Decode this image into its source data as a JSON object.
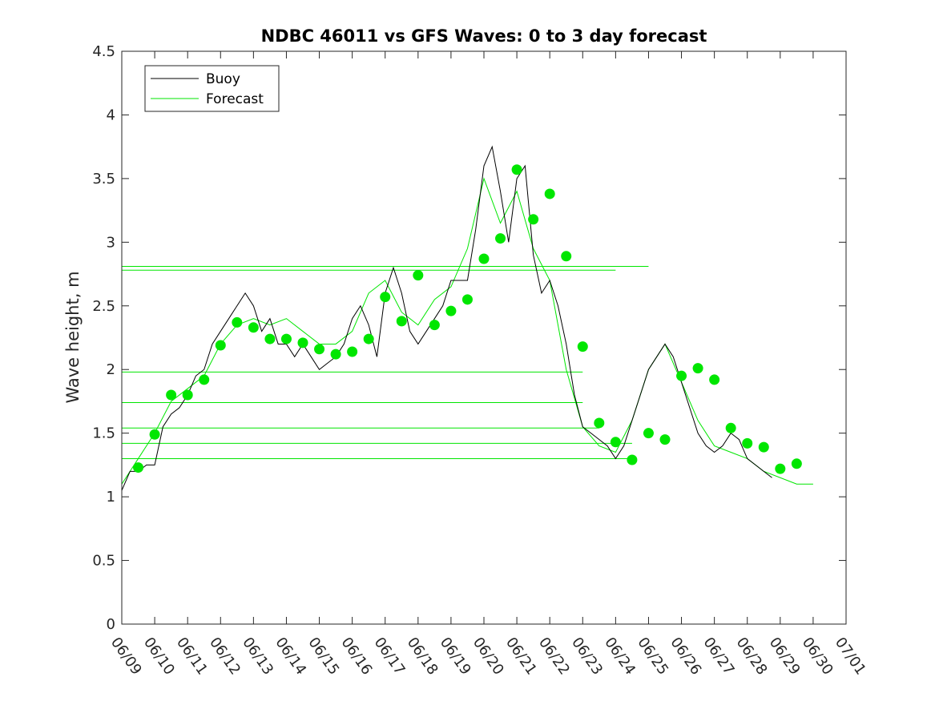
{
  "chart_data": {
    "type": "line",
    "title": "NDBC 46011 vs GFS Waves: 0 to 3 day forecast",
    "xlabel": "",
    "ylabel": "Wave height, m",
    "x_tick_labels": [
      "06/09",
      "06/10",
      "06/11",
      "06/12",
      "06/13",
      "06/14",
      "06/15",
      "06/16",
      "06/17",
      "06/18",
      "06/19",
      "06/20",
      "06/21",
      "06/22",
      "06/23",
      "06/24",
      "06/25",
      "06/26",
      "06/27",
      "06/28",
      "06/29",
      "06/30",
      "07/01"
    ],
    "xlim": [
      0,
      22
    ],
    "ylim": [
      0,
      4.5
    ],
    "y_ticks": [
      0,
      0.5,
      1,
      1.5,
      2,
      2.5,
      3,
      3.5,
      4,
      4.5
    ],
    "y_tick_labels": [
      "0",
      "0.5",
      "1",
      "1.5",
      "2",
      "2.5",
      "3",
      "3.5",
      "4",
      "4.5"
    ],
    "grid": false,
    "legend_position": "top-left",
    "legend": [
      "Buoy",
      "Forecast"
    ],
    "colors": {
      "buoy": "#000000",
      "forecast": "#00e600"
    },
    "x_unit": "days since 06/09",
    "series": [
      {
        "name": "Buoy",
        "points": [
          [
            0,
            1.05
          ],
          [
            0.25,
            1.2
          ],
          [
            0.5,
            1.2
          ],
          [
            0.75,
            1.25
          ],
          [
            1,
            1.25
          ],
          [
            1.25,
            1.55
          ],
          [
            1.5,
            1.65
          ],
          [
            1.75,
            1.7
          ],
          [
            2,
            1.8
          ],
          [
            2.25,
            1.95
          ],
          [
            2.5,
            2.0
          ],
          [
            2.75,
            2.2
          ],
          [
            3,
            2.3
          ],
          [
            3.25,
            2.4
          ],
          [
            3.5,
            2.5
          ],
          [
            3.75,
            2.6
          ],
          [
            4,
            2.5
          ],
          [
            4.25,
            2.3
          ],
          [
            4.5,
            2.4
          ],
          [
            4.75,
            2.2
          ],
          [
            5,
            2.2
          ],
          [
            5.25,
            2.1
          ],
          [
            5.5,
            2.2
          ],
          [
            5.75,
            2.1
          ],
          [
            6,
            2.0
          ],
          [
            6.25,
            2.05
          ],
          [
            6.5,
            2.1
          ],
          [
            6.75,
            2.2
          ],
          [
            7,
            2.4
          ],
          [
            7.25,
            2.5
          ],
          [
            7.5,
            2.35
          ],
          [
            7.75,
            2.1
          ],
          [
            8,
            2.6
          ],
          [
            8.25,
            2.8
          ],
          [
            8.5,
            2.6
          ],
          [
            8.75,
            2.3
          ],
          [
            9,
            2.2
          ],
          [
            9.25,
            2.3
          ],
          [
            9.5,
            2.4
          ],
          [
            9.75,
            2.5
          ],
          [
            10,
            2.7
          ],
          [
            10.25,
            2.7
          ],
          [
            10.5,
            2.7
          ],
          [
            10.75,
            3.1
          ],
          [
            11,
            3.6
          ],
          [
            11.25,
            3.75
          ],
          [
            11.5,
            3.4
          ],
          [
            11.75,
            3.0
          ],
          [
            12,
            3.5
          ],
          [
            12.25,
            3.6
          ],
          [
            12.5,
            2.9
          ],
          [
            12.75,
            2.6
          ],
          [
            13,
            2.7
          ],
          [
            13.25,
            2.5
          ],
          [
            13.5,
            2.2
          ],
          [
            13.75,
            1.8
          ],
          [
            14,
            1.55
          ],
          [
            14.25,
            1.5
          ],
          [
            14.5,
            1.45
          ],
          [
            14.75,
            1.4
          ],
          [
            15,
            1.3
          ],
          [
            15.25,
            1.4
          ],
          [
            15.5,
            1.6
          ],
          [
            15.75,
            1.8
          ],
          [
            16,
            2.0
          ],
          [
            16.25,
            2.1
          ],
          [
            16.5,
            2.2
          ],
          [
            16.75,
            2.1
          ],
          [
            17,
            1.9
          ],
          [
            17.25,
            1.7
          ],
          [
            17.5,
            1.5
          ],
          [
            17.75,
            1.4
          ],
          [
            18,
            1.35
          ],
          [
            18.25,
            1.4
          ],
          [
            18.5,
            1.5
          ],
          [
            18.75,
            1.45
          ],
          [
            19,
            1.3
          ],
          [
            19.25,
            1.25
          ],
          [
            19.5,
            1.2
          ],
          [
            19.75,
            1.15
          ]
        ]
      },
      {
        "name": "Forecast",
        "points": [
          [
            0,
            1.1
          ],
          [
            0.5,
            1.3
          ],
          [
            1,
            1.5
          ],
          [
            1.5,
            1.75
          ],
          [
            2,
            1.85
          ],
          [
            2.5,
            1.95
          ],
          [
            3,
            2.2
          ],
          [
            3.5,
            2.35
          ],
          [
            4,
            2.4
          ],
          [
            4.5,
            2.35
          ],
          [
            5,
            2.4
          ],
          [
            5.5,
            2.3
          ],
          [
            6,
            2.2
          ],
          [
            6.5,
            2.2
          ],
          [
            7,
            2.3
          ],
          [
            7.5,
            2.6
          ],
          [
            8,
            2.7
          ],
          [
            8.5,
            2.45
          ],
          [
            9,
            2.35
          ],
          [
            9.5,
            2.55
          ],
          [
            10,
            2.65
          ],
          [
            10.5,
            2.95
          ],
          [
            11,
            3.5
          ],
          [
            11.5,
            3.15
          ],
          [
            12,
            3.4
          ],
          [
            12.5,
            2.95
          ],
          [
            13,
            2.7
          ],
          [
            13.5,
            2.0
          ],
          [
            14,
            1.55
          ],
          [
            14.5,
            1.4
          ],
          [
            15,
            1.35
          ],
          [
            15.5,
            1.6
          ],
          [
            16,
            2.0
          ],
          [
            16.5,
            2.2
          ],
          [
            17,
            1.9
          ],
          [
            17.5,
            1.6
          ],
          [
            18,
            1.4
          ],
          [
            18.5,
            1.35
          ],
          [
            19,
            1.3
          ],
          [
            19.5,
            1.2
          ],
          [
            20,
            1.15
          ],
          [
            20.5,
            1.1
          ],
          [
            21,
            1.1
          ]
        ]
      }
    ],
    "forecast_markers": [
      [
        0.5,
        1.23
      ],
      [
        1,
        1.49
      ],
      [
        1.5,
        1.8
      ],
      [
        2,
        1.8
      ],
      [
        2.5,
        1.92
      ],
      [
        3,
        2.19
      ],
      [
        3.5,
        2.37
      ],
      [
        4,
        2.33
      ],
      [
        4.5,
        2.24
      ],
      [
        5,
        2.24
      ],
      [
        5.5,
        2.21
      ],
      [
        6,
        2.16
      ],
      [
        6.5,
        2.12
      ],
      [
        7,
        2.14
      ],
      [
        7.5,
        2.24
      ],
      [
        8,
        2.57
      ],
      [
        8.5,
        2.38
      ],
      [
        9,
        2.74
      ],
      [
        9.5,
        2.35
      ],
      [
        10,
        2.46
      ],
      [
        10.5,
        2.55
      ],
      [
        11,
        2.87
      ],
      [
        11.5,
        3.03
      ],
      [
        12,
        3.57
      ],
      [
        12.5,
        3.18
      ],
      [
        13,
        3.38
      ],
      [
        13.5,
        2.89
      ],
      [
        14,
        2.18
      ],
      [
        14.5,
        1.58
      ],
      [
        15,
        1.43
      ],
      [
        15.5,
        1.29
      ],
      [
        16,
        1.5
      ],
      [
        16.5,
        1.45
      ],
      [
        17,
        1.95
      ],
      [
        17.5,
        2.01
      ],
      [
        18,
        1.92
      ],
      [
        18.5,
        1.54
      ],
      [
        19,
        1.42
      ],
      [
        19.5,
        1.39
      ],
      [
        20,
        1.22
      ],
      [
        20.5,
        1.26
      ]
    ],
    "forecast_flat_lines": [
      [
        0,
        2.81,
        16
      ],
      [
        0,
        2.78,
        15
      ],
      [
        0,
        1.98,
        14
      ],
      [
        0,
        1.74,
        14
      ],
      [
        0,
        1.54,
        14.5
      ],
      [
        0,
        1.42,
        15.5
      ],
      [
        0,
        1.3,
        15.5
      ]
    ]
  }
}
